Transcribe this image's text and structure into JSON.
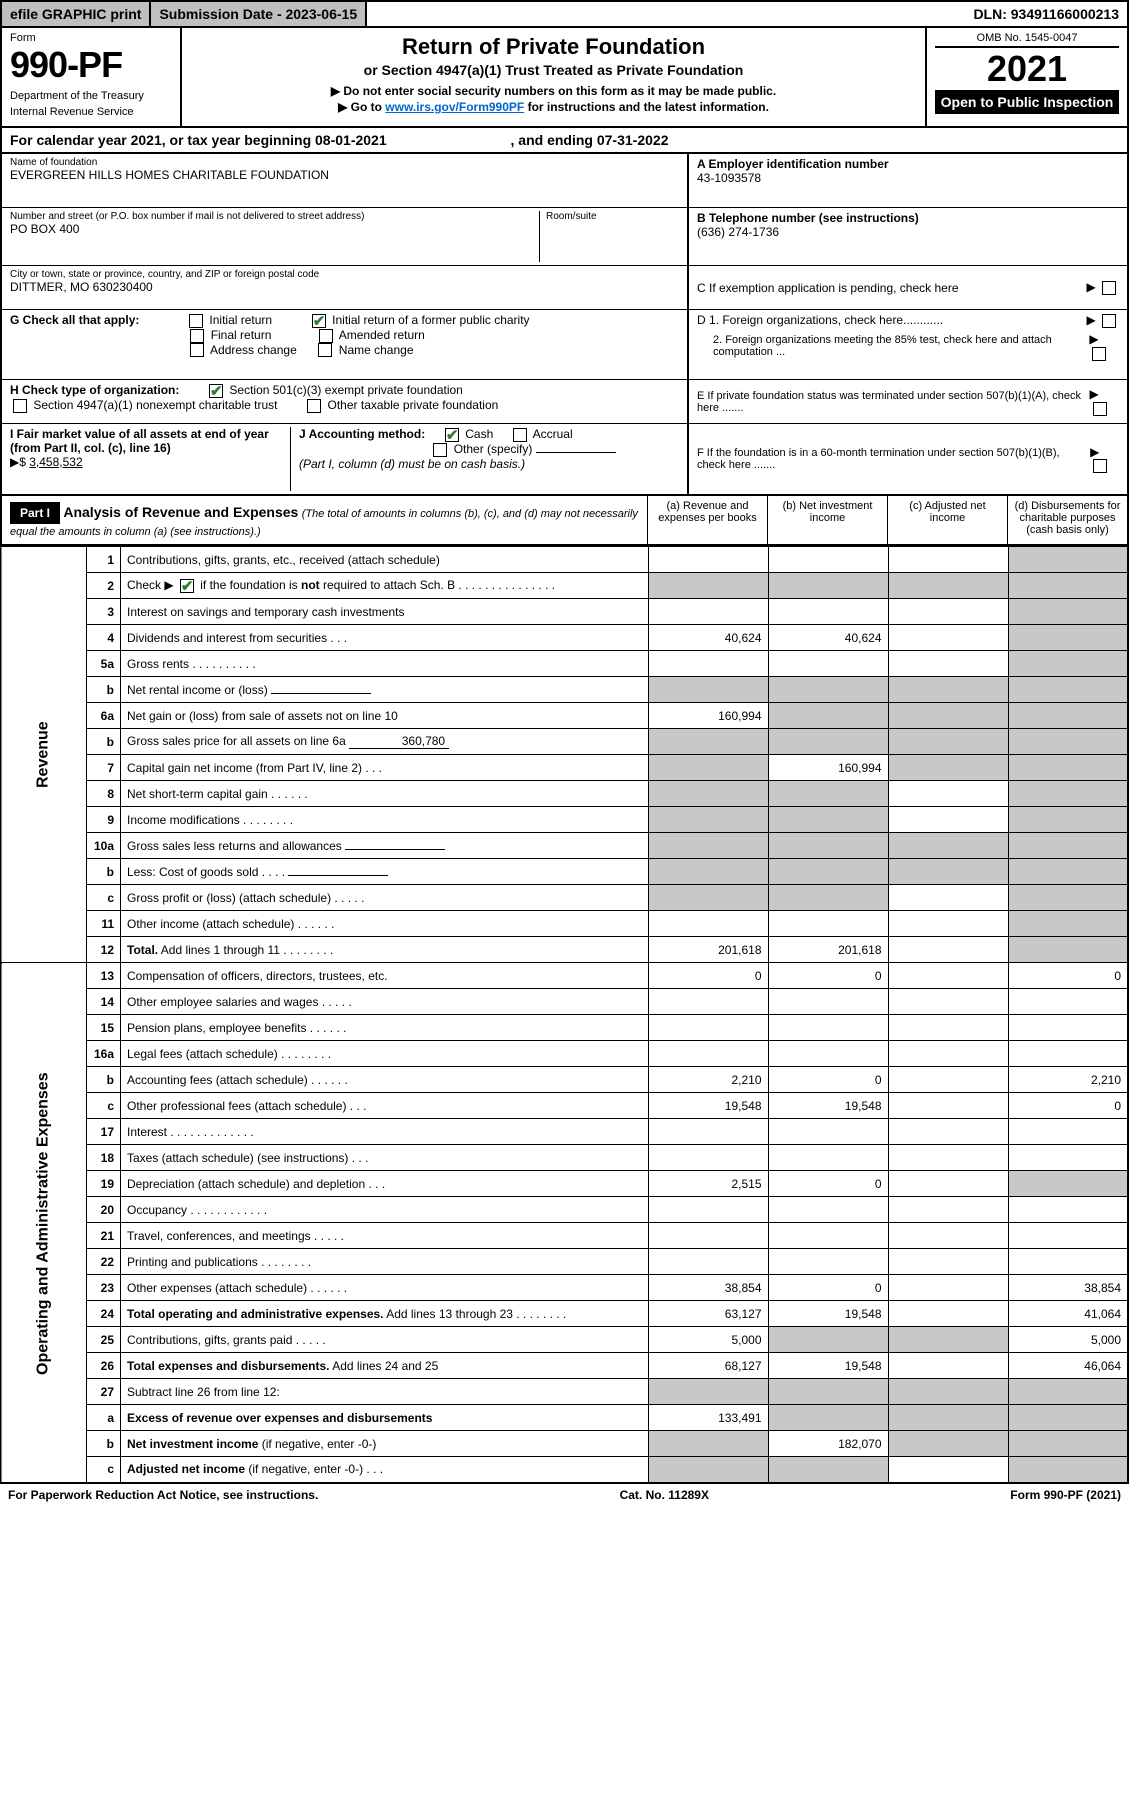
{
  "topbar": {
    "efile": "efile GRAPHIC print",
    "submission_label": "Submission Date - 2023-06-15",
    "dln": "DLN: 93491166000213"
  },
  "header": {
    "form_label": "Form",
    "form_number": "990-PF",
    "dept1": "Department of the Treasury",
    "dept2": "Internal Revenue Service",
    "title": "Return of Private Foundation",
    "subtitle": "or Section 4947(a)(1) Trust Treated as Private Foundation",
    "note1_prefix": "▶ Do not enter social security numbers on this form as it may be made public.",
    "note2_prefix": "▶ Go to ",
    "note2_link": "www.irs.gov/Form990PF",
    "note2_suffix": " for instructions and the latest information.",
    "omb": "OMB No. 1545-0047",
    "year": "2021",
    "inspection": "Open to Public Inspection"
  },
  "calendar": {
    "text_a": "For calendar year 2021, or tax year beginning 08-01-2021",
    "text_b": ", and ending 07-31-2022"
  },
  "id": {
    "name_label": "Name of foundation",
    "name": "EVERGREEN HILLS HOMES CHARITABLE FOUNDATION",
    "addr_label": "Number and street (or P.O. box number if mail is not delivered to street address)",
    "addr": "PO BOX 400",
    "room_label": "Room/suite",
    "city_label": "City or town, state or province, country, and ZIP or foreign postal code",
    "city": "DITTMER, MO  630230400",
    "A_label": "A Employer identification number",
    "A_val": "43-1093578",
    "B_label": "B  Telephone number (see instructions)",
    "B_val": "(636) 274-1736",
    "C_label": "C  If exemption application is pending, check here",
    "D1": "D 1.  Foreign organizations, check here............",
    "D2": "2.  Foreign organizations meeting the 85% test, check here and attach computation ...",
    "E": "E  If private foundation status was terminated under section 507(b)(1)(A), check here .......",
    "F": "F  If the foundation is in a 60-month termination under section 507(b)(1)(B), check here ......."
  },
  "G": {
    "label": "G Check all that apply:",
    "opts": [
      "Initial return",
      "Initial return of a former public charity",
      "Final return",
      "Amended return",
      "Address change",
      "Name change"
    ]
  },
  "H": {
    "label": "H Check type of organization:",
    "opt1": "Section 501(c)(3) exempt private foundation",
    "opt2": "Section 4947(a)(1) nonexempt charitable trust",
    "opt3": "Other taxable private foundation"
  },
  "I": {
    "label": "I Fair market value of all assets at end of year (from Part II, col. (c), line 16)",
    "arrow": "▶$ ",
    "value": "3,458,532"
  },
  "J": {
    "label": "J Accounting method:",
    "cash": "Cash",
    "accrual": "Accrual",
    "other": "Other (specify)",
    "note": "(Part I, column (d) must be on cash basis.)"
  },
  "partI": {
    "tag": "Part I",
    "title": "Analysis of Revenue and Expenses",
    "note": "(The total of amounts in columns (b), (c), and (d) may not necessarily equal the amounts in column (a) (see instructions).)",
    "colA": "(a)   Revenue and expenses per books",
    "colB": "(b)   Net investment income",
    "colC": "(c)   Adjusted net income",
    "colD": "(d)   Disbursements for charitable purposes (cash basis only)"
  },
  "sideLabels": {
    "rev": "Revenue",
    "exp": "Operating and Administrative Expenses"
  },
  "rows": [
    {
      "n": "1",
      "label": "Contributions, gifts, grants, etc., received (attach schedule)",
      "a": "",
      "b": "",
      "c": "",
      "d": "",
      "shadeD": true
    },
    {
      "n": "2",
      "label": "Check ▶ [✔] if the foundation is <b>not</b> required to attach Sch. B",
      "a": "-",
      "b": "-",
      "c": "-",
      "d": "-",
      "shadeAll": true,
      "spanLabel": true
    },
    {
      "n": "3",
      "label": "Interest on savings and temporary cash investments",
      "a": "",
      "b": "",
      "c": "",
      "d": "",
      "shadeD": true
    },
    {
      "n": "4",
      "label": "Dividends and interest from securities   .   .   .",
      "a": "40,624",
      "b": "40,624",
      "c": "",
      "d": "",
      "shadeD": true
    },
    {
      "n": "5a",
      "label": "Gross rents   .   .   .   .   .   .   .   .   .   .",
      "a": "",
      "b": "",
      "c": "",
      "d": "",
      "shadeD": true
    },
    {
      "n": "b",
      "label": "Net rental income or (loss)   ",
      "a": "-",
      "b": "-",
      "c": "-",
      "d": "-",
      "shadeAll": true,
      "sub": true
    },
    {
      "n": "6a",
      "label": "Net gain or (loss) from sale of assets not on line 10",
      "a": "160,994",
      "b": "-",
      "c": "-",
      "d": "-",
      "shadeBCD": true
    },
    {
      "n": "b",
      "label": "Gross sales price for all assets on line 6a",
      "a": "-",
      "b": "-",
      "c": "-",
      "d": "-",
      "shadeAll": true,
      "sub": true,
      "subval": "360,780"
    },
    {
      "n": "7",
      "label": "Capital gain net income (from Part IV, line 2)   .   .   .",
      "a": "-",
      "b": "160,994",
      "c": "-",
      "d": "-",
      "shadeA": true,
      "shadeCD": true
    },
    {
      "n": "8",
      "label": "Net short-term capital gain   .   .   .   .   .   .",
      "a": "-",
      "b": "-",
      "c": "",
      "d": "-",
      "shadeA": true,
      "shadeB": true,
      "shadeD": true
    },
    {
      "n": "9",
      "label": "Income modifications   .   .   .   .   .   .   .   .",
      "a": "-",
      "b": "-",
      "c": "",
      "d": "-",
      "shadeA": true,
      "shadeB": true,
      "shadeD": true
    },
    {
      "n": "10a",
      "label": "Gross sales less returns and allowances",
      "a": "-",
      "b": "-",
      "c": "-",
      "d": "-",
      "shadeAll": true,
      "sub": true
    },
    {
      "n": "b",
      "label": "Less: Cost of goods sold   .   .   .   .",
      "a": "-",
      "b": "-",
      "c": "-",
      "d": "-",
      "shadeAll": true,
      "sub": true
    },
    {
      "n": "c",
      "label": "Gross profit or (loss) (attach schedule)   .   .   .   .   .",
      "a": "-",
      "b": "-",
      "c": "",
      "d": "-",
      "shadeA": true,
      "shadeB": true,
      "shadeD": true
    },
    {
      "n": "11",
      "label": "Other income (attach schedule)   .   .   .   .   .   .",
      "a": "",
      "b": "",
      "c": "",
      "d": "",
      "shadeD": true
    },
    {
      "n": "12",
      "label": "<b>Total.</b> Add lines 1 through 11   .   .   .   .   .   .   .   .",
      "a": "201,618",
      "b": "201,618",
      "c": "",
      "d": "",
      "shadeD": true
    },
    {
      "n": "13",
      "label": "Compensation of officers, directors, trustees, etc.",
      "a": "0",
      "b": "0",
      "c": "",
      "d": "0"
    },
    {
      "n": "14",
      "label": "Other employee salaries and wages   .   .   .   .   .",
      "a": "",
      "b": "",
      "c": "",
      "d": ""
    },
    {
      "n": "15",
      "label": "Pension plans, employee benefits   .   .   .   .   .   .",
      "a": "",
      "b": "",
      "c": "",
      "d": ""
    },
    {
      "n": "16a",
      "label": "Legal fees (attach schedule)   .   .   .   .   .   .   .   .",
      "a": "",
      "b": "",
      "c": "",
      "d": ""
    },
    {
      "n": "b",
      "label": "Accounting fees (attach schedule)   .   .   .   .   .   .",
      "a": "2,210",
      "b": "0",
      "c": "",
      "d": "2,210"
    },
    {
      "n": "c",
      "label": "Other professional fees (attach schedule)   .   .   .",
      "a": "19,548",
      "b": "19,548",
      "c": "",
      "d": "0"
    },
    {
      "n": "17",
      "label": "Interest   .   .   .   .   .   .   .   .   .   .   .   .   .",
      "a": "",
      "b": "",
      "c": "",
      "d": ""
    },
    {
      "n": "18",
      "label": "Taxes (attach schedule) (see instructions)   .   .   .",
      "a": "",
      "b": "",
      "c": "",
      "d": ""
    },
    {
      "n": "19",
      "label": "Depreciation (attach schedule) and depletion   .   .   .",
      "a": "2,515",
      "b": "0",
      "c": "",
      "d": "",
      "shadeD": true
    },
    {
      "n": "20",
      "label": "Occupancy   .   .   .   .   .   .   .   .   .   .   .   .",
      "a": "",
      "b": "",
      "c": "",
      "d": ""
    },
    {
      "n": "21",
      "label": "Travel, conferences, and meetings   .   .   .   .   .",
      "a": "",
      "b": "",
      "c": "",
      "d": ""
    },
    {
      "n": "22",
      "label": "Printing and publications   .   .   .   .   .   .   .   .",
      "a": "",
      "b": "",
      "c": "",
      "d": ""
    },
    {
      "n": "23",
      "label": "Other expenses (attach schedule)   .   .   .   .   .   .",
      "a": "38,854",
      "b": "0",
      "c": "",
      "d": "38,854"
    },
    {
      "n": "24",
      "label": "<b>Total operating and administrative expenses.</b> Add lines 13 through 23   .   .   .   .   .   .   .   .",
      "a": "63,127",
      "b": "19,548",
      "c": "",
      "d": "41,064"
    },
    {
      "n": "25",
      "label": "Contributions, gifts, grants paid   .   .   .   .   .",
      "a": "5,000",
      "b": "-",
      "c": "-",
      "d": "5,000",
      "shadeB": true,
      "shadeC": true
    },
    {
      "n": "26",
      "label": "<b>Total expenses and disbursements.</b> Add lines 24 and 25",
      "a": "68,127",
      "b": "19,548",
      "c": "",
      "d": "46,064"
    },
    {
      "n": "27",
      "label": "Subtract line 26 from line 12:",
      "a": "-",
      "b": "-",
      "c": "-",
      "d": "-",
      "shadeAll": true
    },
    {
      "n": "a",
      "label": "<b>Excess of revenue over expenses and disbursements</b>",
      "a": "133,491",
      "b": "-",
      "c": "-",
      "d": "-",
      "shadeBCD": true
    },
    {
      "n": "b",
      "label": "<b>Net investment income</b> (if negative, enter -0-)",
      "a": "-",
      "b": "182,070",
      "c": "-",
      "d": "-",
      "shadeA": true,
      "shadeCD": true
    },
    {
      "n": "c",
      "label": "<b>Adjusted net income</b> (if negative, enter -0-)   .   .   .",
      "a": "-",
      "b": "-",
      "c": "",
      "d": "-",
      "shadeA": true,
      "shadeB": true,
      "shadeD": true
    }
  ],
  "footer": {
    "left": "For Paperwork Reduction Act Notice, see instructions.",
    "center": "Cat. No. 11289X",
    "right": "Form 990-PF (2021)"
  }
}
